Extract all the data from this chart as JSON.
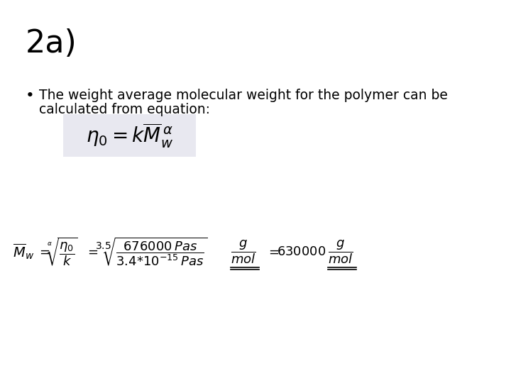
{
  "background_color": "#ffffff",
  "title": "2a)",
  "title_fontsize": 32,
  "bullet_fontsize": 13.5,
  "bullet_color": "#000000",
  "eq1_bg": "#e8e8f0",
  "eq1_fontsize": 20,
  "eq2_fontsize": 13
}
